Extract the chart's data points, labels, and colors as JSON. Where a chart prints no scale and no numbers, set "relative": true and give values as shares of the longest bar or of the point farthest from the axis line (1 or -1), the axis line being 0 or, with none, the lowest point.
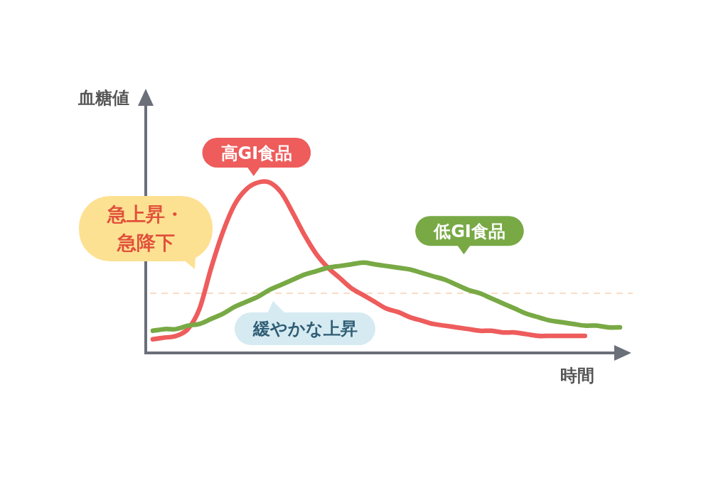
{
  "chart_data": {
    "type": "line",
    "relative": true,
    "xlabel": "時間",
    "ylabel": "血糖値",
    "categories": [
      null,
      null,
      null,
      null,
      null,
      null,
      null,
      null,
      null,
      null,
      null,
      null,
      null,
      null,
      null,
      null,
      null,
      null,
      null,
      null,
      null,
      null,
      null,
      null,
      null,
      null,
      null,
      null,
      null,
      null,
      null,
      null,
      null,
      null,
      null,
      null,
      null,
      null,
      null,
      null,
      null
    ],
    "series": [
      {
        "name": "高GI食品",
        "color": "#ee5c5c",
        "values": [
          0.08,
          0.09,
          0.1,
          0.14,
          0.26,
          0.5,
          0.71,
          0.87,
          0.96,
          1,
          1,
          0.94,
          0.82,
          0.69,
          0.58,
          0.5,
          0.44,
          0.38,
          0.34,
          0.3,
          0.26,
          0.24,
          0.21,
          0.19,
          0.17,
          0.16,
          0.15,
          0.14,
          0.13,
          0.13,
          0.12,
          0.12,
          0.11,
          0.1,
          0.1,
          0.1,
          0.1,
          0.1,
          null,
          null,
          null
        ]
      },
      {
        "name": "低GI食品",
        "color": "#78a945",
        "values": [
          0.13,
          0.14,
          0.14,
          0.16,
          0.17,
          0.2,
          0.23,
          0.27,
          0.3,
          0.33,
          0.37,
          0.4,
          0.43,
          0.46,
          0.48,
          0.5,
          0.51,
          0.52,
          0.53,
          0.52,
          0.51,
          0.5,
          0.49,
          0.47,
          0.45,
          0.43,
          0.4,
          0.37,
          0.35,
          0.32,
          0.29,
          0.26,
          0.23,
          0.21,
          0.19,
          0.18,
          0.17,
          0.16,
          0.16,
          0.15,
          0.15
        ]
      }
    ],
    "ref_lines": [
      {
        "axis": "y",
        "value": 0.35,
        "color": "#f6d2b4",
        "line_style": "dashed"
      }
    ],
    "annotations": [
      "急上昇・急降下",
      "緩やかな上昇"
    ],
    "line_style": "solid"
  }
}
